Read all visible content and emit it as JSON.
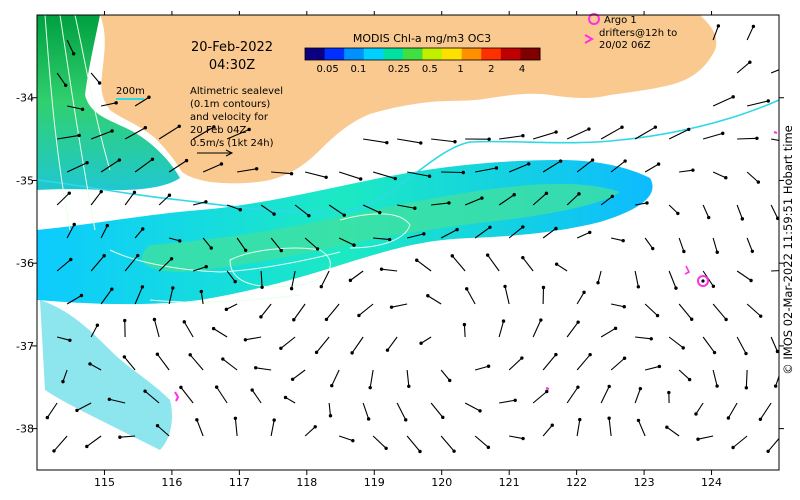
{
  "colors": {
    "land": "#f9c98f",
    "shelf": "#3fd6c8",
    "isobath": "#2fd8e6",
    "sealevel_contour": "#e8ffe8",
    "argo": "#ff2fe6",
    "velocity": "#000000",
    "frame": "#000000"
  },
  "header": {
    "date": "20-Feb-2022",
    "time": "04:30Z"
  },
  "legend": {
    "isobath_label": "200m",
    "altimetry_lines": [
      "Altimetric sealevel",
      "(0.1m contours)",
      "and velocity for",
      "20 Feb 04Z",
      "0.5m/s (1kt 24h)"
    ]
  },
  "colorbar": {
    "title": "MODIS Chl-a mg/m3 OC3",
    "tick_labels": [
      "0.05",
      "0.1",
      "0.25",
      "0.5",
      "1",
      "2",
      "4"
    ],
    "colors": [
      "#0a0080",
      "#0030ff",
      "#0090ff",
      "#00d0ff",
      "#00e0a0",
      "#40e040",
      "#c0f000",
      "#ffe000",
      "#ff9000",
      "#ff3000",
      "#c00000",
      "#800000"
    ]
  },
  "argo_legend": {
    "lines": [
      "Argo 1",
      "drifters@12h to",
      "20/02 06Z"
    ]
  },
  "axes": {
    "x_ticks": [
      "115",
      "116",
      "117",
      "118",
      "119",
      "120",
      "121",
      "122",
      "123",
      "124"
    ],
    "y_ticks": [
      "-34",
      "-35",
      "-36",
      "-37",
      "-38"
    ]
  },
  "credit": "© IMOS 02-Mar-2022 11:59:51 Hobart time",
  "map_extent": {
    "lon_range": [
      114.0,
      125.0
    ],
    "lat_range": [
      -38.5,
      -33.0
    ]
  }
}
